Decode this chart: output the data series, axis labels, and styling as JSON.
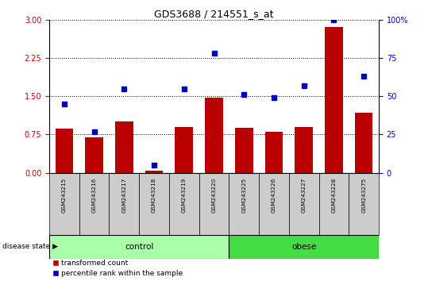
{
  "title": "GDS3688 / 214551_s_at",
  "samples": [
    "GSM243215",
    "GSM243216",
    "GSM243217",
    "GSM243218",
    "GSM243219",
    "GSM243220",
    "GSM243225",
    "GSM243226",
    "GSM243227",
    "GSM243228",
    "GSM243275"
  ],
  "transformed_count": [
    0.87,
    0.7,
    1.0,
    0.04,
    0.9,
    1.48,
    0.88,
    0.8,
    0.9,
    2.85,
    1.18
  ],
  "percentile_rank": [
    45,
    27,
    55,
    5,
    55,
    78,
    51,
    49,
    57,
    100,
    63
  ],
  "n_control": 6,
  "n_obese": 5,
  "ylim_left": [
    0,
    3
  ],
  "ylim_right": [
    0,
    100
  ],
  "yticks_left": [
    0,
    0.75,
    1.5,
    2.25,
    3
  ],
  "yticks_right": [
    0,
    25,
    50,
    75,
    100
  ],
  "bar_color": "#bb0000",
  "dot_color": "#0000bb",
  "control_color": "#aaffaa",
  "obese_color": "#44dd44",
  "tick_bg_color": "#cccccc",
  "left_tick_color": "#cc0000",
  "right_tick_color": "#0000cc",
  "legend_red_label": "transformed count",
  "legend_blue_label": "percentile rank within the sample",
  "disease_state_label": "disease state",
  "control_label": "control",
  "obese_label": "obese"
}
